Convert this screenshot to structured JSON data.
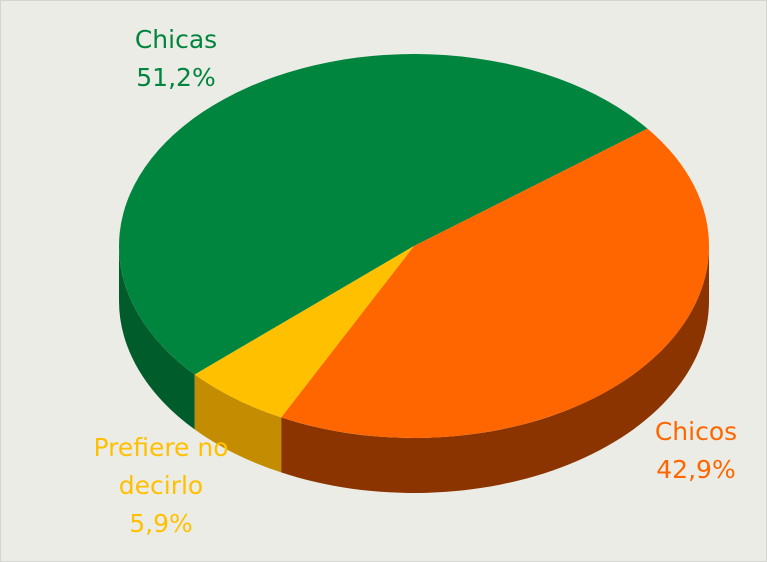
{
  "chart_data": {
    "type": "pie",
    "categories": [
      "Chicas",
      "Chicos",
      "Prefiere no decirlo"
    ],
    "values": [
      51.2,
      42.9,
      5.9
    ],
    "value_labels": [
      "51,2%",
      "42,9%",
      "5,9%"
    ],
    "colors": [
      "#00853e",
      "#ff6600",
      "#ffc000"
    ],
    "side_colors": [
      "#005c2b",
      "#8c3400",
      "#c48c00"
    ]
  }
}
